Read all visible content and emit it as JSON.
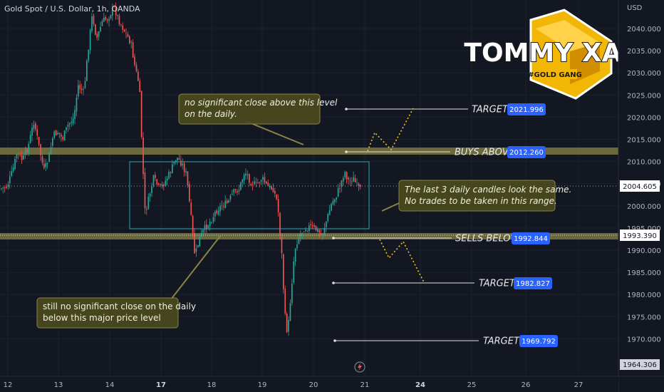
{
  "header": {
    "symbol_title": "Gold Spot / U.S. Dollar, 1h, OANDA"
  },
  "price_axis": {
    "currency": "USD",
    "ticks": [
      "2040.000",
      "2035.000",
      "2030.000",
      "2025.000",
      "2020.000",
      "2015.000",
      "2010.000",
      "2005.000",
      "2000.000",
      "1995.000",
      "1990.000",
      "1985.000",
      "1980.000",
      "1975.000",
      "1970.000"
    ],
    "current_price": "2004.605",
    "crosshair_price": "1993.390",
    "bottom_price": "1964.306"
  },
  "time_axis": {
    "labels": [
      {
        "text": "12",
        "bold": false
      },
      {
        "text": "13",
        "bold": false
      },
      {
        "text": "14",
        "bold": false
      },
      {
        "text": "17",
        "bold": true
      },
      {
        "text": "18",
        "bold": false
      },
      {
        "text": "19",
        "bold": false
      },
      {
        "text": "20",
        "bold": false
      },
      {
        "text": "21",
        "bold": false
      },
      {
        "text": "24",
        "bold": true
      },
      {
        "text": "25",
        "bold": false
      },
      {
        "text": "26",
        "bold": false
      },
      {
        "text": "27",
        "bold": false
      }
    ]
  },
  "levels": [
    {
      "label": "TARGET",
      "price": "2021.996"
    },
    {
      "label": "BUYS ABOVE",
      "price": "2012.260"
    },
    {
      "label": "SELLS BELOW",
      "price": "1992.844"
    },
    {
      "label": "TARGET",
      "price": "1982.827"
    },
    {
      "label": "TARGET",
      "price": "1969.792"
    }
  ],
  "notes": {
    "top_line1": "no significant close above this level",
    "top_line2": "on the daily.",
    "right_line1": "The last 3 daily candles look the same.",
    "right_line2": "No trades to be taken in this range.",
    "bottom_line1": "still no significant close on the daily",
    "bottom_line2": "below this major price level"
  },
  "logo": {
    "main": "TOMMY XAU",
    "sub": "#GOLD GANG"
  },
  "colors": {
    "background": "#131722",
    "bull": "#26a69a",
    "bear": "#ef5350",
    "zone": "#8a8445",
    "badge": "#2962ff",
    "range_box": "#2aa3b5",
    "projection": "#f5c518",
    "note_fill": "#4a4a1e",
    "note_border": "#8a8445"
  },
  "icons": {
    "replay": "lightning-icon"
  }
}
